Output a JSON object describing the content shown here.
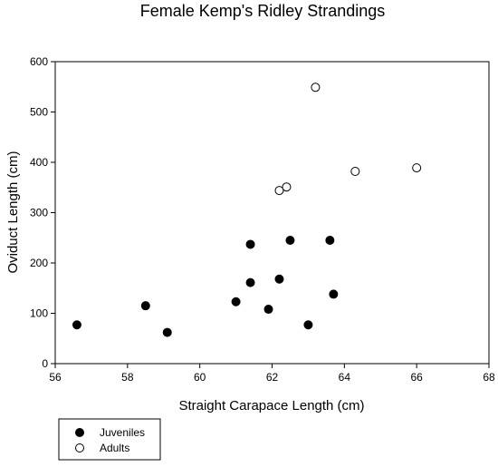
{
  "chart_data": {
    "type": "scatter",
    "title": "Female Kemp's Ridley Strandings",
    "xlabel": "Straight Carapace Length (cm)",
    "ylabel": "Oviduct Length (cm)",
    "xlim": [
      56,
      68
    ],
    "ylim": [
      0,
      600
    ],
    "x_ticks": [
      "56",
      "58",
      "60",
      "62",
      "64",
      "66",
      "68"
    ],
    "y_ticks": [
      "0",
      "100",
      "200",
      "300",
      "400",
      "500",
      "600"
    ],
    "grid": false,
    "legend_position": "bottom-left",
    "series": [
      {
        "name": "Juveniles",
        "marker": "filled-circle",
        "color": "#000000",
        "points": [
          {
            "x": 56.6,
            "y": 77
          },
          {
            "x": 58.5,
            "y": 115
          },
          {
            "x": 59.1,
            "y": 62
          },
          {
            "x": 61.0,
            "y": 123
          },
          {
            "x": 61.4,
            "y": 237
          },
          {
            "x": 61.4,
            "y": 161
          },
          {
            "x": 61.9,
            "y": 108
          },
          {
            "x": 62.2,
            "y": 168
          },
          {
            "x": 62.5,
            "y": 245
          },
          {
            "x": 63.0,
            "y": 77
          },
          {
            "x": 63.6,
            "y": 245
          },
          {
            "x": 63.7,
            "y": 138
          }
        ]
      },
      {
        "name": "Adults",
        "marker": "open-circle",
        "color": "#000000",
        "points": [
          {
            "x": 63.2,
            "y": 549
          },
          {
            "x": 62.2,
            "y": 344
          },
          {
            "x": 62.4,
            "y": 351
          },
          {
            "x": 64.3,
            "y": 382
          },
          {
            "x": 66.0,
            "y": 389
          }
        ]
      }
    ]
  }
}
